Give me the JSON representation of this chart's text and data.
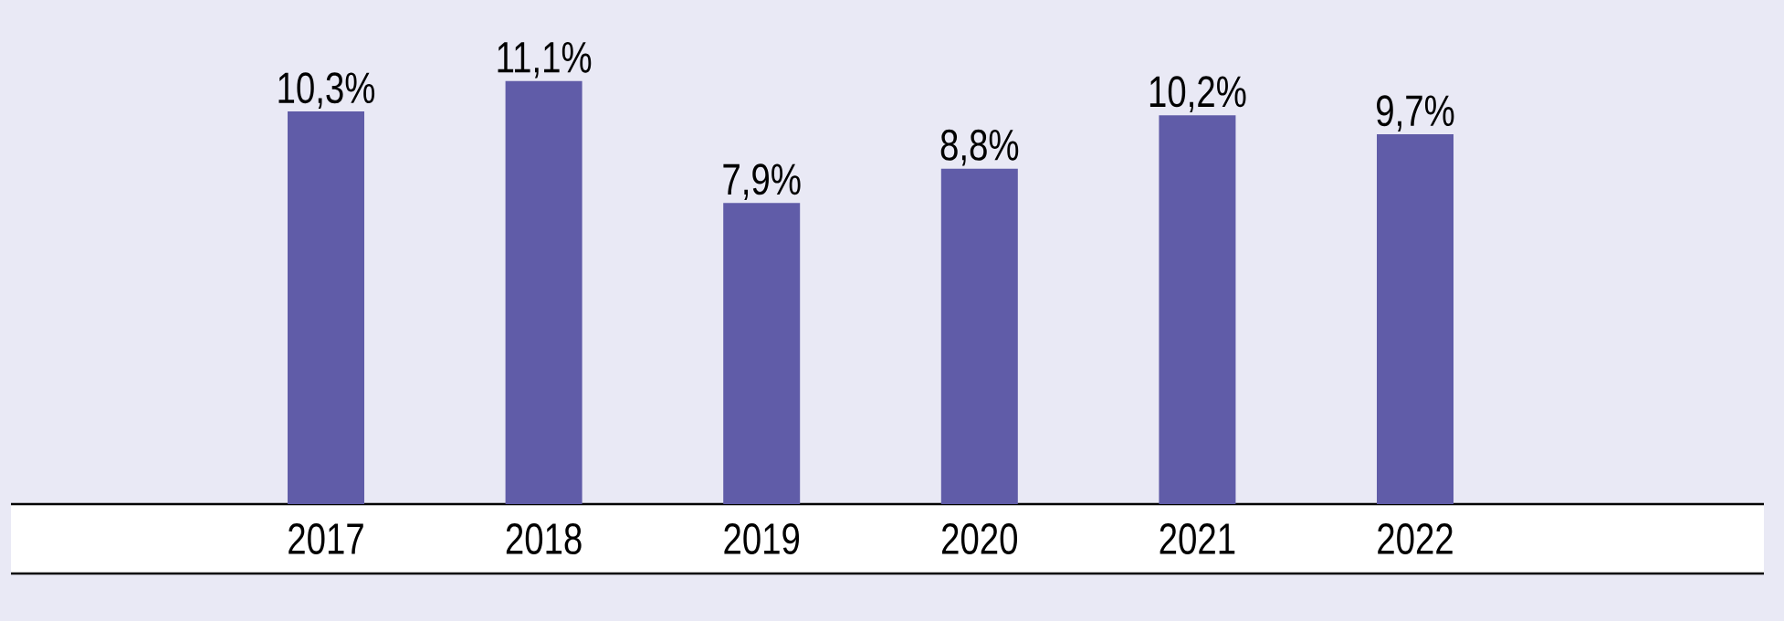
{
  "chart_data": {
    "type": "bar",
    "categories": [
      "2017",
      "2018",
      "2019",
      "2020",
      "2021",
      "2022"
    ],
    "values": [
      10.3,
      11.1,
      7.9,
      8.8,
      10.2,
      9.7
    ],
    "value_labels": [
      "10,3%",
      "11,1%",
      "7,9%",
      "8,8%",
      "10,2%",
      "9,7%"
    ],
    "color": "#605ca8"
  }
}
